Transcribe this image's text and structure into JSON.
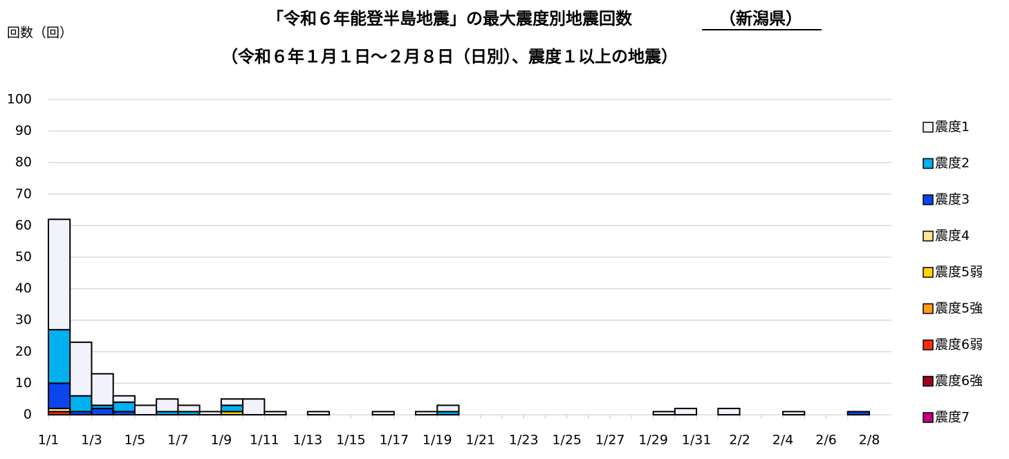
{
  "chart_data": {
    "type": "bar",
    "stacked": true,
    "title": "「令和６年能登半島地震」の最大震度別地震回数",
    "region": "（新潟県）",
    "subtitle": "（令和６年１月１日～２月８日（日別）、震度１以上の地震）",
    "y_label": "回数（回）",
    "categories": [
      "1/1",
      null,
      "1/3",
      null,
      "1/5",
      null,
      "1/7",
      null,
      "1/9",
      null,
      "1/11",
      null,
      "1/13",
      null,
      "1/15",
      null,
      "1/17",
      null,
      "1/19",
      null,
      "1/21",
      null,
      "1/23",
      null,
      "1/25",
      null,
      "1/27",
      null,
      "1/29",
      null,
      "1/31",
      null,
      "2/2",
      null,
      "2/4",
      null,
      "2/6",
      null,
      "2/8"
    ],
    "series": [
      {
        "name": "震度1",
        "color": "#f2f2fc",
        "values": [
          35,
          17,
          10,
          2,
          3,
          4,
          2,
          1,
          2,
          5,
          1,
          0,
          1,
          0,
          0,
          1,
          0,
          1,
          2,
          0,
          0,
          0,
          0,
          0,
          0,
          0,
          0,
          0,
          1,
          2,
          0,
          2,
          0,
          0,
          1,
          0,
          0,
          0,
          0
        ]
      },
      {
        "name": "震度2",
        "color": "#00b0f0",
        "values": [
          17,
          5,
          1,
          3,
          0,
          1,
          1,
          0,
          2,
          0,
          0,
          0,
          0,
          0,
          0,
          0,
          0,
          0,
          1,
          0,
          0,
          0,
          0,
          0,
          0,
          0,
          0,
          0,
          0,
          0,
          0,
          0,
          0,
          0,
          0,
          0,
          0,
          0,
          0
        ]
      },
      {
        "name": "震度3",
        "color": "#0a46f0",
        "values": [
          8,
          1,
          2,
          1,
          0,
          0,
          0,
          0,
          0,
          0,
          0,
          0,
          0,
          0,
          0,
          0,
          0,
          0,
          0,
          0,
          0,
          0,
          0,
          0,
          0,
          0,
          0,
          0,
          0,
          0,
          0,
          0,
          0,
          0,
          0,
          0,
          0,
          1,
          0
        ]
      },
      {
        "name": "震度4",
        "color": "#ffe699",
        "values": [
          1,
          0,
          0,
          0,
          0,
          0,
          0,
          0,
          0,
          0,
          0,
          0,
          0,
          0,
          0,
          0,
          0,
          0,
          0,
          0,
          0,
          0,
          0,
          0,
          0,
          0,
          0,
          0,
          0,
          0,
          0,
          0,
          0,
          0,
          0,
          0,
          0,
          0,
          0
        ]
      },
      {
        "name": "震度5弱",
        "color": "#ffd500",
        "values": [
          0,
          0,
          0,
          0,
          0,
          0,
          0,
          0,
          1,
          0,
          0,
          0,
          0,
          0,
          0,
          0,
          0,
          0,
          0,
          0,
          0,
          0,
          0,
          0,
          0,
          0,
          0,
          0,
          0,
          0,
          0,
          0,
          0,
          0,
          0,
          0,
          0,
          0,
          0
        ]
      },
      {
        "name": "震度5強",
        "color": "#ff9a1a",
        "values": [
          0,
          0,
          0,
          0,
          0,
          0,
          0,
          0,
          0,
          0,
          0,
          0,
          0,
          0,
          0,
          0,
          0,
          0,
          0,
          0,
          0,
          0,
          0,
          0,
          0,
          0,
          0,
          0,
          0,
          0,
          0,
          0,
          0,
          0,
          0,
          0,
          0,
          0,
          0
        ]
      },
      {
        "name": "震度6弱",
        "color": "#ff2a0a",
        "values": [
          1,
          0,
          0,
          0,
          0,
          0,
          0,
          0,
          0,
          0,
          0,
          0,
          0,
          0,
          0,
          0,
          0,
          0,
          0,
          0,
          0,
          0,
          0,
          0,
          0,
          0,
          0,
          0,
          0,
          0,
          0,
          0,
          0,
          0,
          0,
          0,
          0,
          0,
          0
        ]
      },
      {
        "name": "震度6強",
        "color": "#a0001e",
        "values": [
          0,
          0,
          0,
          0,
          0,
          0,
          0,
          0,
          0,
          0,
          0,
          0,
          0,
          0,
          0,
          0,
          0,
          0,
          0,
          0,
          0,
          0,
          0,
          0,
          0,
          0,
          0,
          0,
          0,
          0,
          0,
          0,
          0,
          0,
          0,
          0,
          0,
          0,
          0
        ]
      },
      {
        "name": "震度7",
        "color": "#c00078",
        "values": [
          0,
          0,
          0,
          0,
          0,
          0,
          0,
          0,
          0,
          0,
          0,
          0,
          0,
          0,
          0,
          0,
          0,
          0,
          0,
          0,
          0,
          0,
          0,
          0,
          0,
          0,
          0,
          0,
          0,
          0,
          0,
          0,
          0,
          0,
          0,
          0,
          0,
          0,
          0
        ]
      }
    ],
    "ylim": [
      0,
      100
    ],
    "yticks": [
      0,
      10,
      20,
      30,
      40,
      50,
      60,
      70,
      80,
      90,
      100
    ],
    "grid": true,
    "legend": "right"
  }
}
